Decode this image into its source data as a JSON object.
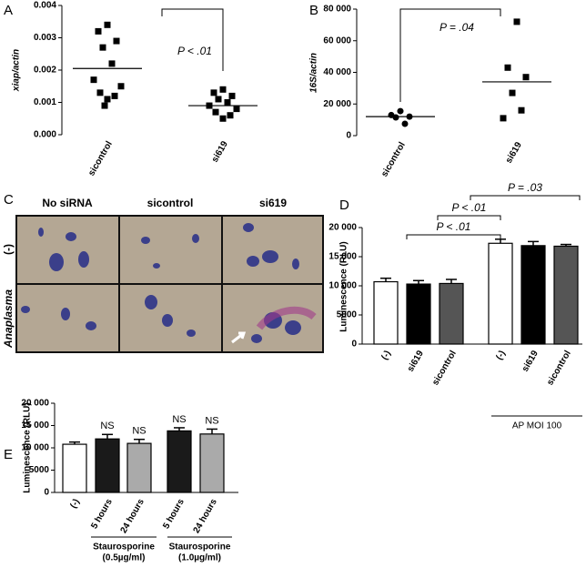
{
  "chart_data": [
    {
      "type": "dot",
      "panel": "A",
      "ylabel": "xiap/actin",
      "categories": [
        "sicontrol",
        "si619"
      ],
      "values": [
        [
          0.0034,
          0.0032,
          0.0029,
          0.0027,
          0.0022,
          0.0017,
          0.0015,
          0.0013,
          0.0012,
          0.0011,
          0.0009
        ],
        [
          0.0014,
          0.0013,
          0.0012,
          0.0011,
          0.001,
          0.0009,
          0.0008,
          0.0007,
          0.0006,
          0.0005
        ]
      ],
      "means": [
        0.00205,
        0.0009
      ],
      "markers": [
        "square",
        "square"
      ],
      "annotation": "P < .01",
      "ylim": [
        0,
        0.004
      ],
      "yticks": [
        {
          "value": 0,
          "label": "0.000"
        },
        {
          "value": 0.001,
          "label": "0.001"
        },
        {
          "value": 0.002,
          "label": "0.002"
        },
        {
          "value": 0.003,
          "label": "0.003"
        },
        {
          "value": 0.004,
          "label": "0.004"
        }
      ]
    },
    {
      "type": "dot",
      "panel": "B",
      "ylabel": "16S/actin",
      "categories": [
        "sicontrol",
        "si619"
      ],
      "values": [
        [
          15500,
          13000,
          12000,
          11500,
          7500
        ],
        [
          72000,
          43000,
          37000,
          27000,
          16000,
          11000
        ]
      ],
      "means": [
        12000,
        34000
      ],
      "markers": [
        "circle",
        "square"
      ],
      "annotation": "P = .04",
      "ylim": [
        0,
        80000
      ],
      "yticks": [
        0,
        {
          "value": 20000,
          "label": "20 000"
        },
        {
          "value": 40000,
          "label": "40 000"
        },
        {
          "value": 60000,
          "label": "60 000"
        },
        {
          "value": 80000,
          "label": "80 000"
        }
      ]
    },
    {
      "type": "bar",
      "panel": "D",
      "ylabel": "Luminescence (RLU)",
      "categories": [
        "(-)",
        "si619",
        "sicontrol",
        "(-)",
        "si619",
        "sicontrol"
      ],
      "values": [
        10700,
        10300,
        10400,
        17300,
        16900,
        16800
      ],
      "errors": [
        600,
        600,
        700,
        700,
        700,
        300
      ],
      "colors": [
        "#ffffff",
        "#000000",
        "#555555",
        "#ffffff",
        "#000000",
        "#555555"
      ],
      "annotations": [
        "P < .01",
        "P < .01",
        "P = .03"
      ],
      "group_labels": [
        [
          "AP MOI 100"
        ]
      ],
      "ylim": [
        0,
        20000
      ],
      "yticks": [
        0,
        5000,
        {
          "value": 10000,
          "label": "10 000"
        },
        {
          "value": 15000,
          "label": "15 000"
        },
        {
          "value": 20000,
          "label": "20 000"
        }
      ]
    },
    {
      "type": "bar",
      "panel": "E",
      "ylabel": "Luminescence (RLU)",
      "categories": [
        "(-)",
        "5 hours",
        "24 hours",
        "5 hours",
        "24 hours"
      ],
      "values": [
        10800,
        12000,
        11000,
        13800,
        13100
      ],
      "errors": [
        500,
        1000,
        900,
        700,
        1100
      ],
      "colors": [
        "#ffffff",
        "#1a1a1a",
        "#aaaaaa",
        "#1a1a1a",
        "#aaaaaa"
      ],
      "bar_labels": [
        null,
        "NS",
        "NS",
        "NS",
        "NS"
      ],
      "group_labels": [
        [
          "Staurosporine",
          "(0.5µg/ml)"
        ],
        [
          "Staurosporine",
          "(1.0µg/ml)"
        ]
      ],
      "ylim": [
        0,
        20000
      ],
      "yticks": [
        0,
        5000,
        {
          "value": 10000,
          "label": "10 000"
        },
        {
          "value": 15000,
          "label": "15 000"
        },
        {
          "value": 20000,
          "label": "20 000"
        }
      ]
    }
  ],
  "panel_c": {
    "panel": "C",
    "columns": [
      "No siRNA",
      "sicontrol",
      "si619"
    ],
    "rows": [
      "(-)",
      "Anaplasma"
    ]
  }
}
